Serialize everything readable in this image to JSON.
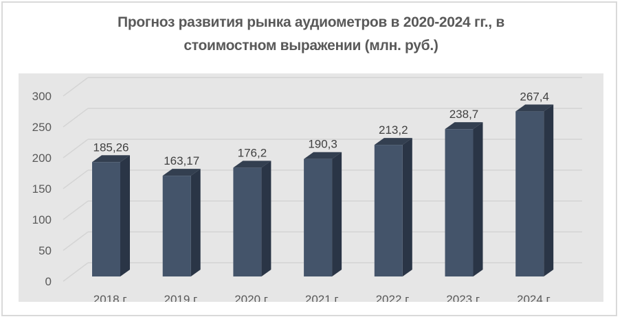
{
  "title_line1": "Прогноз развития рынка аудиометров в 2020-2024 гг., в",
  "title_line2": "стоимостном выражении (млн. руб.)",
  "colors": {
    "bar_front": "#44546a",
    "bar_side": "#2a3546",
    "bar_top": "#333f50",
    "plot_bg": "#e6e6e6",
    "gridline": "#d4d4d4",
    "text": "#595959"
  },
  "chart_data": {
    "type": "bar",
    "title": "Прогноз развития рынка аудиометров в 2020-2024 гг., в стоимостном выражении (млн. руб.)",
    "categories": [
      "2018 г.",
      "2019 г.",
      "2020 г.",
      "2021 г.",
      "2022 г.",
      "2023 г.",
      "2024 г."
    ],
    "values": [
      185.26,
      163.17,
      176.2,
      190.3,
      213.2,
      238.7,
      267.4
    ],
    "data_labels": [
      "185,26",
      "163,17",
      "176,2",
      "190,3",
      "213,2",
      "238,7",
      "267,4"
    ],
    "xlabel": "",
    "ylabel": "",
    "ylim": [
      0,
      300
    ],
    "yticks": [
      0,
      50,
      100,
      150,
      200,
      250,
      300
    ],
    "grid": true,
    "legend": null,
    "style": "3d-column"
  }
}
